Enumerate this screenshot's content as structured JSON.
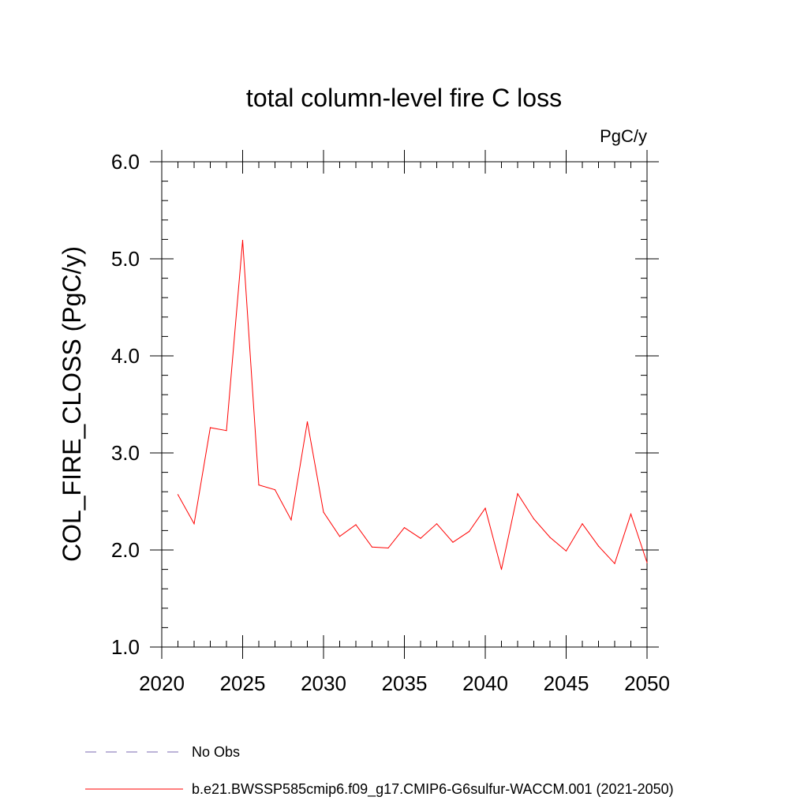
{
  "chart_data": {
    "type": "line",
    "title": "total column-level fire C loss",
    "units": "PgC/y",
    "ylabel": "COL_FIRE_CLOSS  (PgC/y)",
    "xlabel": "",
    "xlim": [
      2020,
      2050
    ],
    "ylim": [
      1.0,
      6.0
    ],
    "x_ticks": [
      2020,
      2025,
      2030,
      2035,
      2040,
      2045,
      2050
    ],
    "y_ticks": [
      1.0,
      2.0,
      3.0,
      4.0,
      5.0,
      6.0
    ],
    "y_tick_labels": [
      "1.0",
      "2.0",
      "3.0",
      "4.0",
      "5.0",
      "6.0"
    ],
    "x_minor_step": 1,
    "y_minor_step": 0.2,
    "grid": false,
    "legend_position": "bottom-left",
    "series": [
      {
        "name": "b.e21.BWSSP585cmip6.f09_g17.CMIP6-G6sulfur-WACCM.001 (2021-2050)",
        "color": "#ff0000",
        "style": "solid",
        "x": [
          2021,
          2022,
          2023,
          2024,
          2025,
          2026,
          2027,
          2028,
          2029,
          2030,
          2031,
          2032,
          2033,
          2034,
          2035,
          2036,
          2037,
          2038,
          2039,
          2040,
          2041,
          2042,
          2043,
          2044,
          2045,
          2046,
          2047,
          2048,
          2049,
          2050
        ],
        "y": [
          2.57,
          2.27,
          3.26,
          3.23,
          5.19,
          2.67,
          2.62,
          2.31,
          3.32,
          2.39,
          2.14,
          2.26,
          2.03,
          2.02,
          2.23,
          2.12,
          2.27,
          2.08,
          2.19,
          2.43,
          1.8,
          2.58,
          2.32,
          2.13,
          1.99,
          2.27,
          2.04,
          1.86,
          2.37,
          1.87
        ]
      }
    ],
    "legend": [
      {
        "label": "No Obs",
        "color": "#7b68b0",
        "style": "dashed"
      },
      {
        "label": "b.e21.BWSSP585cmip6.f09_g17.CMIP6-G6sulfur-WACCM.001 (2021-2050)",
        "color": "#ff0000",
        "style": "solid"
      }
    ]
  }
}
